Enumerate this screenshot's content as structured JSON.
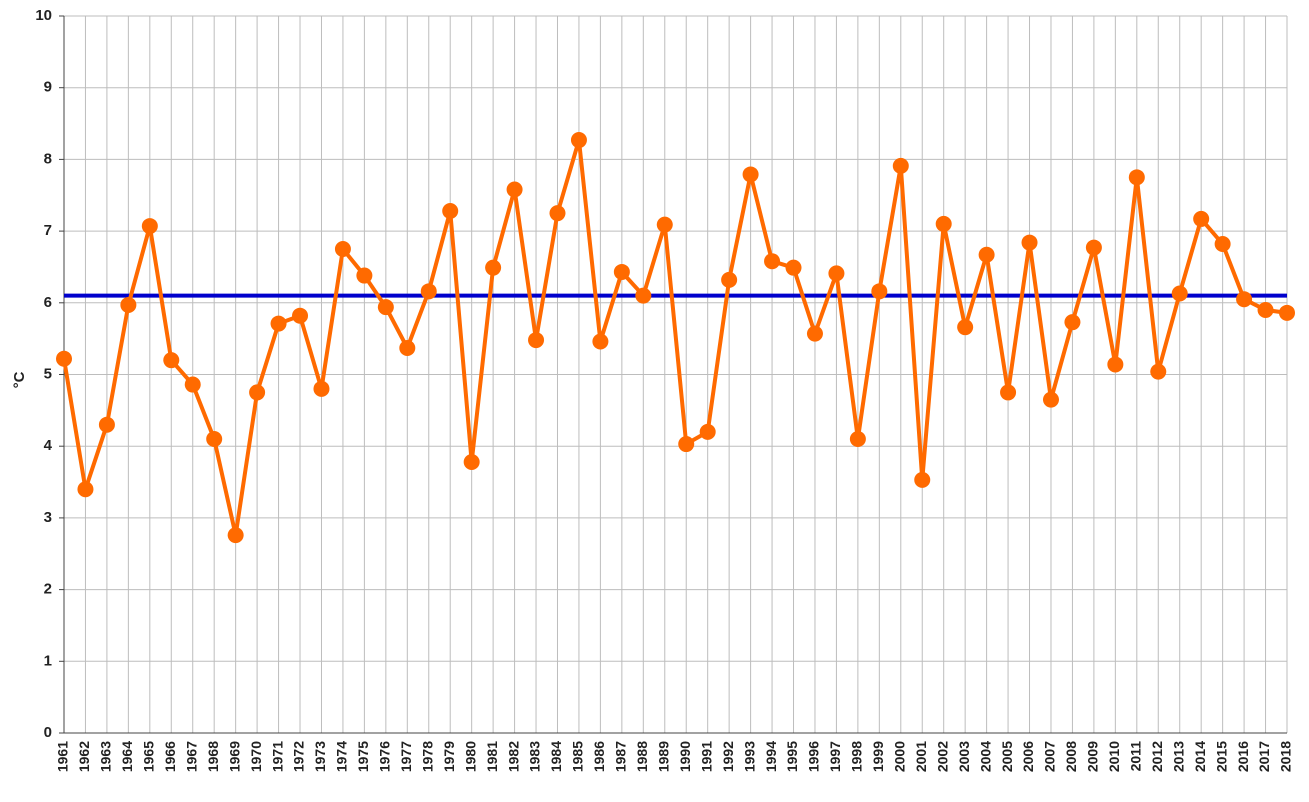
{
  "chart_data": {
    "type": "line",
    "y_label": "°C",
    "categories": [
      "1961",
      "1962",
      "1963",
      "1964",
      "1965",
      "1966",
      "1967",
      "1968",
      "1969",
      "1970",
      "1971",
      "1972",
      "1973",
      "1974",
      "1975",
      "1976",
      "1977",
      "1978",
      "1979",
      "1980",
      "1981",
      "1982",
      "1983",
      "1984",
      "1985",
      "1986",
      "1987",
      "1988",
      "1989",
      "1990",
      "1991",
      "1992",
      "1993",
      "1994",
      "1995",
      "1996",
      "1997",
      "1998",
      "1999",
      "2000",
      "2001",
      "2002",
      "2003",
      "2004",
      "2005",
      "2006",
      "2007",
      "2008",
      "2009",
      "2010",
      "2011",
      "2012",
      "2013",
      "2014",
      "2015",
      "2016",
      "2017",
      "2018"
    ],
    "series": [
      {
        "color": "#ff6a00",
        "values": [
          5.22,
          3.4,
          4.3,
          5.97,
          7.07,
          5.2,
          4.86,
          4.1,
          2.76,
          4.75,
          5.71,
          5.82,
          4.8,
          6.75,
          6.38,
          5.94,
          5.37,
          6.16,
          7.28,
          3.78,
          6.49,
          7.58,
          5.48,
          7.25,
          8.27,
          5.46,
          6.43,
          6.1,
          7.09,
          4.03,
          4.2,
          6.32,
          7.79,
          6.58,
          6.49,
          5.57,
          6.41,
          4.1,
          6.16,
          7.91,
          3.53,
          7.1,
          5.66,
          6.67,
          4.75,
          6.84,
          4.65,
          5.73,
          6.77,
          5.14,
          7.75,
          5.04,
          6.13,
          7.17,
          6.82,
          6.05,
          5.9,
          5.86
        ]
      }
    ],
    "reference_line": {
      "value": 6.1,
      "color": "#0000cc"
    },
    "ylim": [
      0,
      10
    ],
    "yticks": [
      0,
      1,
      2,
      3,
      4,
      5,
      6,
      7,
      8,
      9,
      10
    ],
    "grid": true
  }
}
